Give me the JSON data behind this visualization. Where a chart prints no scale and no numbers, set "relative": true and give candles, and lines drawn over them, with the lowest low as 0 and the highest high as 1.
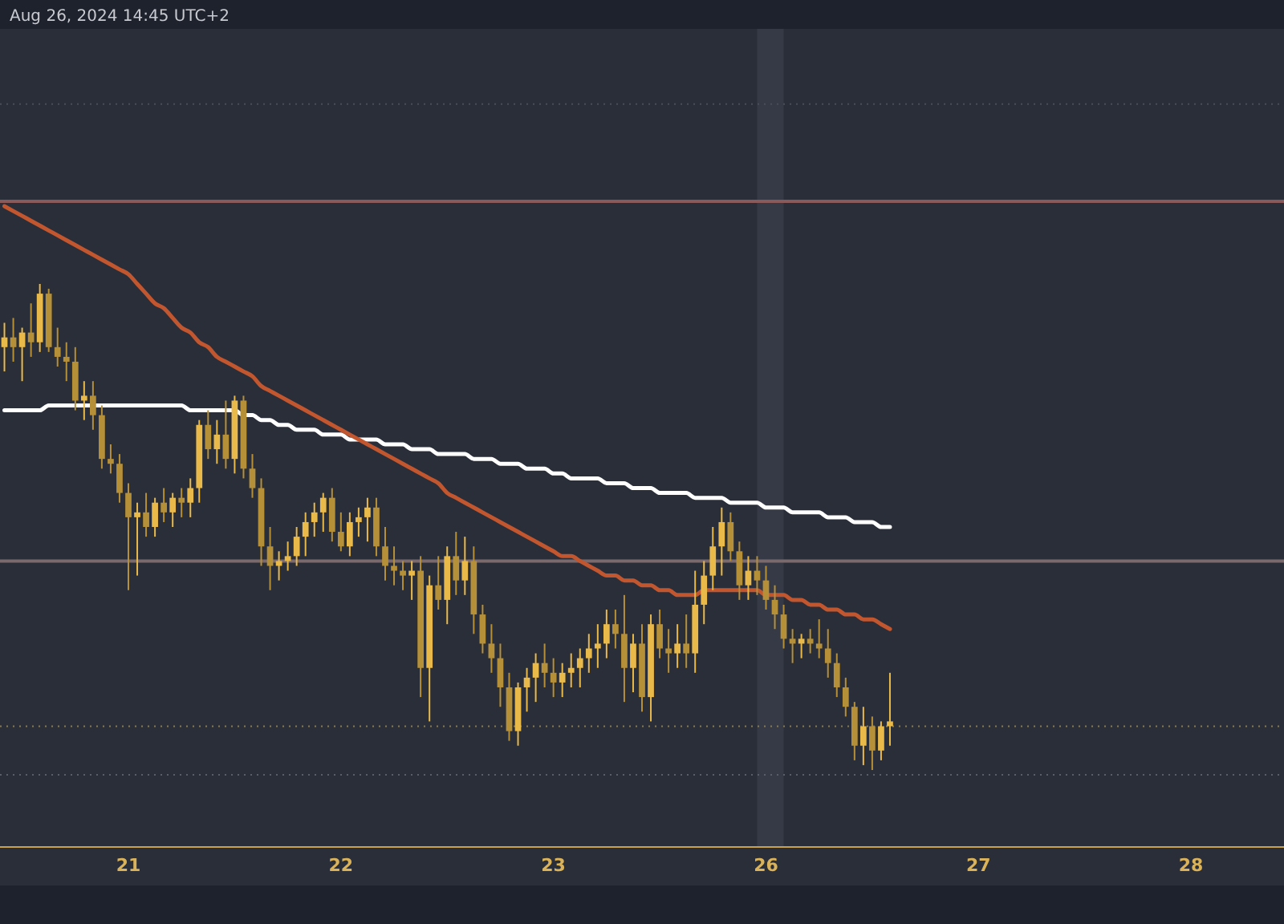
{
  "chart_data": {
    "type": "candlestick",
    "relative": true,
    "colors": [
      "#e9b949",
      "#b69039",
      "#e9b949",
      "#b69039",
      "#e9b949",
      "#b69039",
      "#b69039",
      "#b69039",
      "#b69039",
      "#e9b949",
      "#b69039",
      "#b69039",
      "#b69039",
      "#b69039",
      "#b69039",
      "#e9b949",
      "#b69039",
      "#e9b949",
      "#b69039",
      "#e9b949",
      "#b69039",
      "#e9b949",
      "#e9b949",
      "#b69039",
      "#e9b949",
      "#b69039",
      "#e9b949",
      "#b69039",
      "#b69039",
      "#b69039",
      "#b69039",
      "#e9b949",
      "#e9b949",
      "#e9b949",
      "#e9b949",
      "#e9b949",
      "#e9b949",
      "#b69039",
      "#b69039",
      "#e9b949",
      "#e9b949",
      "#e9b949",
      "#b69039",
      "#b69039",
      "#b69039",
      "#b69039",
      "#e9b949",
      "#b69039",
      "#e9b949",
      "#b69039",
      "#e9b949",
      "#b69039",
      "#e9b949",
      "#b69039",
      "#b69039",
      "#b69039",
      "#b69039",
      "#b69039",
      "#e9b949",
      "#e9b949",
      "#e9b949",
      "#b69039",
      "#b69039",
      "#e9b949",
      "#e9b949",
      "#e9b949",
      "#e9b949",
      "#e9b949",
      "#e9b949",
      "#b69039",
      "#b69039",
      "#e9b949",
      "#b69039",
      "#e9b949",
      "#b69039",
      "#b69039",
      "#e9b949",
      "#b69039",
      "#e9b949",
      "#e9b949",
      "#e9b949",
      "#e9b949",
      "#b69039",
      "#b69039",
      "#e9b949",
      "#b69039",
      "#b69039",
      "#b69039",
      "#b69039",
      "#b69039",
      "#e9b949",
      "#b69039",
      "#b69039",
      "#b69039",
      "#b69039",
      "#b69039",
      "#b69039",
      "#e9b949",
      "#b69039",
      "#e9b949",
      "#e9b949",
      null,
      null,
      null,
      null,
      null,
      null,
      null,
      null,
      null,
      null,
      null,
      null,
      null,
      null,
      null,
      null,
      null,
      null,
      null,
      null,
      null,
      null,
      null,
      null,
      null,
      null,
      null,
      null,
      null,
      null,
      null,
      null,
      null,
      null,
      null,
      null,
      null,
      null,
      null,
      null,
      null,
      null,
      null,
      null
    ],
    "annotations": [
      "Aug 26, 2024 14:45 UTC+2"
    ],
    "categories": [
      null,
      null,
      null,
      null,
      null,
      null,
      null,
      null,
      null,
      null,
      null,
      null,
      null,
      null,
      "21",
      null,
      null,
      null,
      null,
      null,
      null,
      null,
      null,
      null,
      null,
      null,
      null,
      null,
      null,
      null,
      null,
      null,
      null,
      null,
      null,
      null,
      null,
      null,
      "22",
      null,
      null,
      null,
      null,
      null,
      null,
      null,
      null,
      null,
      null,
      null,
      null,
      null,
      null,
      null,
      null,
      null,
      null,
      null,
      null,
      null,
      null,
      null,
      "23",
      null,
      null,
      null,
      null,
      null,
      null,
      null,
      null,
      null,
      null,
      null,
      null,
      null,
      null,
      null,
      null,
      null,
      null,
      null,
      null,
      null,
      null,
      null,
      "26",
      null,
      null,
      null,
      null,
      null,
      null,
      null,
      null,
      null,
      null,
      null,
      null,
      null,
      null,
      null,
      null,
      null,
      null,
      null,
      null,
      null,
      null,
      null,
      "27",
      null,
      null,
      null,
      null,
      null,
      null,
      null,
      null,
      null,
      null,
      null,
      null,
      null,
      null,
      null,
      null,
      null,
      null,
      null,
      null,
      null,
      null,
      null,
      "28",
      null,
      null,
      null,
      null,
      null,
      null,
      null,
      null,
      null,
      null
    ],
    "ohlc": [
      [
        0.87,
        0.92,
        0.82,
        0.89
      ],
      [
        0.89,
        0.93,
        0.84,
        0.87
      ],
      [
        0.87,
        0.91,
        0.8,
        0.9
      ],
      [
        0.9,
        0.96,
        0.85,
        0.88
      ],
      [
        0.88,
        1.0,
        0.86,
        0.98
      ],
      [
        0.98,
        0.99,
        0.86,
        0.87
      ],
      [
        0.87,
        0.91,
        0.83,
        0.85
      ],
      [
        0.85,
        0.88,
        0.8,
        0.84
      ],
      [
        0.84,
        0.87,
        0.74,
        0.76
      ],
      [
        0.76,
        0.8,
        0.72,
        0.77
      ],
      [
        0.77,
        0.8,
        0.7,
        0.73
      ],
      [
        0.73,
        0.75,
        0.62,
        0.64
      ],
      [
        0.64,
        0.67,
        0.61,
        0.63
      ],
      [
        0.63,
        0.65,
        0.55,
        0.57
      ],
      [
        0.57,
        0.59,
        0.37,
        0.52
      ],
      [
        0.52,
        0.55,
        0.4,
        0.53
      ],
      [
        0.53,
        0.57,
        0.48,
        0.5
      ],
      [
        0.5,
        0.56,
        0.48,
        0.55
      ],
      [
        0.55,
        0.58,
        0.51,
        0.53
      ],
      [
        0.53,
        0.57,
        0.5,
        0.56
      ],
      [
        0.56,
        0.58,
        0.52,
        0.55
      ],
      [
        0.55,
        0.6,
        0.52,
        0.58
      ],
      [
        0.58,
        0.72,
        0.55,
        0.71
      ],
      [
        0.71,
        0.74,
        0.64,
        0.66
      ],
      [
        0.66,
        0.72,
        0.63,
        0.69
      ],
      [
        0.69,
        0.76,
        0.62,
        0.64
      ],
      [
        0.64,
        0.77,
        0.61,
        0.76
      ],
      [
        0.76,
        0.77,
        0.6,
        0.62
      ],
      [
        0.62,
        0.65,
        0.56,
        0.58
      ],
      [
        0.58,
        0.6,
        0.42,
        0.46
      ],
      [
        0.46,
        0.5,
        0.37,
        0.42
      ],
      [
        0.42,
        0.45,
        0.39,
        0.43
      ],
      [
        0.43,
        0.47,
        0.41,
        0.44
      ],
      [
        0.44,
        0.5,
        0.42,
        0.48
      ],
      [
        0.48,
        0.53,
        0.44,
        0.51
      ],
      [
        0.51,
        0.55,
        0.48,
        0.53
      ],
      [
        0.53,
        0.57,
        0.49,
        0.56
      ],
      [
        0.56,
        0.58,
        0.47,
        0.49
      ],
      [
        0.49,
        0.53,
        0.45,
        0.46
      ],
      [
        0.46,
        0.53,
        0.44,
        0.51
      ],
      [
        0.51,
        0.54,
        0.48,
        0.52
      ],
      [
        0.52,
        0.56,
        0.47,
        0.54
      ],
      [
        0.54,
        0.56,
        0.44,
        0.46
      ],
      [
        0.46,
        0.5,
        0.39,
        0.42
      ],
      [
        0.42,
        0.46,
        0.38,
        0.41
      ],
      [
        0.41,
        0.43,
        0.37,
        0.4
      ],
      [
        0.4,
        0.43,
        0.35,
        0.41
      ],
      [
        0.41,
        0.44,
        0.15,
        0.21
      ],
      [
        0.21,
        0.4,
        0.1,
        0.38
      ],
      [
        0.38,
        0.44,
        0.33,
        0.35
      ],
      [
        0.35,
        0.46,
        0.3,
        0.44
      ],
      [
        0.44,
        0.49,
        0.36,
        0.39
      ],
      [
        0.39,
        0.48,
        0.36,
        0.43
      ],
      [
        0.43,
        0.46,
        0.28,
        0.32
      ],
      [
        0.32,
        0.34,
        0.24,
        0.26
      ],
      [
        0.26,
        0.3,
        0.2,
        0.23
      ],
      [
        0.23,
        0.26,
        0.13,
        0.17
      ],
      [
        0.17,
        0.2,
        0.06,
        0.08
      ],
      [
        0.08,
        0.18,
        0.05,
        0.17
      ],
      [
        0.17,
        0.21,
        0.12,
        0.19
      ],
      [
        0.19,
        0.24,
        0.14,
        0.22
      ],
      [
        0.22,
        0.26,
        0.17,
        0.2
      ],
      [
        0.2,
        0.23,
        0.15,
        0.18
      ],
      [
        0.18,
        0.22,
        0.15,
        0.2
      ],
      [
        0.2,
        0.24,
        0.17,
        0.21
      ],
      [
        0.21,
        0.25,
        0.17,
        0.23
      ],
      [
        0.23,
        0.28,
        0.2,
        0.25
      ],
      [
        0.25,
        0.3,
        0.21,
        0.26
      ],
      [
        0.26,
        0.33,
        0.23,
        0.3
      ],
      [
        0.3,
        0.33,
        0.25,
        0.28
      ],
      [
        0.28,
        0.36,
        0.14,
        0.21
      ],
      [
        0.21,
        0.28,
        0.16,
        0.26
      ],
      [
        0.26,
        0.3,
        0.12,
        0.15
      ],
      [
        0.15,
        0.32,
        0.1,
        0.3
      ],
      [
        0.3,
        0.33,
        0.23,
        0.25
      ],
      [
        0.25,
        0.29,
        0.2,
        0.24
      ],
      [
        0.24,
        0.3,
        0.21,
        0.26
      ],
      [
        0.26,
        0.32,
        0.21,
        0.24
      ],
      [
        0.24,
        0.41,
        0.2,
        0.34
      ],
      [
        0.34,
        0.43,
        0.3,
        0.4
      ],
      [
        0.4,
        0.5,
        0.37,
        0.46
      ],
      [
        0.46,
        0.54,
        0.4,
        0.51
      ],
      [
        0.51,
        0.53,
        0.43,
        0.45
      ],
      [
        0.45,
        0.47,
        0.35,
        0.38
      ],
      [
        0.38,
        0.44,
        0.35,
        0.41
      ],
      [
        0.41,
        0.44,
        0.36,
        0.39
      ],
      [
        0.39,
        0.42,
        0.33,
        0.35
      ],
      [
        0.35,
        0.38,
        0.29,
        0.32
      ],
      [
        0.32,
        0.34,
        0.25,
        0.27
      ],
      [
        0.27,
        0.29,
        0.22,
        0.26
      ],
      [
        0.26,
        0.28,
        0.23,
        0.27
      ],
      [
        0.27,
        0.29,
        0.24,
        0.26
      ],
      [
        0.26,
        0.31,
        0.23,
        0.25
      ],
      [
        0.25,
        0.29,
        0.19,
        0.22
      ],
      [
        0.22,
        0.24,
        0.15,
        0.17
      ],
      [
        0.17,
        0.19,
        0.11,
        0.13
      ],
      [
        0.13,
        0.14,
        0.02,
        0.05
      ],
      [
        0.05,
        0.13,
        0.01,
        0.09
      ],
      [
        0.09,
        0.11,
        0.0,
        0.04
      ],
      [
        0.04,
        0.1,
        0.02,
        0.09
      ],
      [
        0.09,
        0.2,
        0.05,
        0.1
      ],
      null,
      null,
      null,
      null,
      null,
      null,
      null,
      null,
      null,
      null,
      null,
      null,
      null,
      null,
      null,
      null,
      null,
      null,
      null,
      null,
      null,
      null,
      null,
      null,
      null,
      null,
      null,
      null,
      null,
      null,
      null,
      null,
      null,
      null,
      null,
      null,
      null,
      null,
      null,
      null,
      null,
      null,
      null,
      null
    ],
    "series": [
      {
        "type": "line",
        "color": "#ffffff",
        "values": [
          0.74,
          0.74,
          0.74,
          0.74,
          0.74,
          0.75,
          0.75,
          0.75,
          0.75,
          0.75,
          0.75,
          0.75,
          0.75,
          0.75,
          0.75,
          0.75,
          0.75,
          0.75,
          0.75,
          0.75,
          0.75,
          0.74,
          0.74,
          0.74,
          0.74,
          0.74,
          0.74,
          0.73,
          0.73,
          0.72,
          0.72,
          0.71,
          0.71,
          0.7,
          0.7,
          0.7,
          0.69,
          0.69,
          0.69,
          0.68,
          0.68,
          0.68,
          0.68,
          0.67,
          0.67,
          0.67,
          0.66,
          0.66,
          0.66,
          0.65,
          0.65,
          0.65,
          0.65,
          0.64,
          0.64,
          0.64,
          0.63,
          0.63,
          0.63,
          0.62,
          0.62,
          0.62,
          0.61,
          0.61,
          0.6,
          0.6,
          0.6,
          0.6,
          0.59,
          0.59,
          0.59,
          0.58,
          0.58,
          0.58,
          0.57,
          0.57,
          0.57,
          0.57,
          0.56,
          0.56,
          0.56,
          0.56,
          0.55,
          0.55,
          0.55,
          0.55,
          0.54,
          0.54,
          0.54,
          0.53,
          0.53,
          0.53,
          0.53,
          0.52,
          0.52,
          0.52,
          0.51,
          0.51,
          0.51,
          0.5,
          0.5,
          null,
          null,
          null,
          null,
          null,
          null,
          null,
          null,
          null,
          null,
          null,
          null,
          null,
          null,
          null,
          null,
          null,
          null,
          null,
          null,
          null,
          null,
          null,
          null,
          null,
          null,
          null,
          null,
          null,
          null,
          null,
          null,
          null,
          null,
          null,
          null,
          null,
          null,
          null,
          null,
          null,
          null,
          null,
          null
        ]
      },
      {
        "type": "line",
        "color": "#c2562f",
        "values": [
          1.16,
          1.15,
          1.14,
          1.13,
          1.12,
          1.11,
          1.1,
          1.09,
          1.08,
          1.07,
          1.06,
          1.05,
          1.04,
          1.03,
          1.02,
          1.0,
          0.98,
          0.96,
          0.95,
          0.93,
          0.91,
          0.9,
          0.88,
          0.87,
          0.85,
          0.84,
          0.83,
          0.82,
          0.81,
          0.79,
          0.78,
          0.77,
          0.76,
          0.75,
          0.74,
          0.73,
          0.72,
          0.71,
          0.7,
          0.69,
          0.68,
          0.67,
          0.66,
          0.65,
          0.64,
          0.63,
          0.62,
          0.61,
          0.6,
          0.59,
          0.57,
          0.56,
          0.55,
          0.54,
          0.53,
          0.52,
          0.51,
          0.5,
          0.49,
          0.48,
          0.47,
          0.46,
          0.45,
          0.44,
          0.44,
          0.43,
          0.42,
          0.41,
          0.4,
          0.4,
          0.39,
          0.39,
          0.38,
          0.38,
          0.37,
          0.37,
          0.36,
          0.36,
          0.36,
          0.37,
          0.37,
          0.37,
          0.37,
          0.37,
          0.37,
          0.37,
          0.36,
          0.36,
          0.36,
          0.35,
          0.35,
          0.34,
          0.34,
          0.33,
          0.33,
          0.32,
          0.32,
          0.31,
          0.31,
          0.3,
          0.29,
          null,
          null,
          null,
          null,
          null,
          null,
          null,
          null,
          null,
          null,
          null,
          null,
          null,
          null,
          null,
          null,
          null,
          null,
          null,
          null,
          null,
          null,
          null,
          null,
          null,
          null,
          null,
          null,
          null,
          null,
          null,
          null,
          null,
          null,
          null,
          null,
          null,
          null,
          null,
          null,
          null,
          null,
          null,
          null
        ]
      }
    ],
    "tick_labels": "x",
    "ref_lines": [
      {
        "axis": "y",
        "value": 1.17,
        "color": "#8a5a5a",
        "line_style": "solid"
      },
      {
        "axis": "y",
        "value": 1.37,
        "color": "#4a4e5a",
        "line_style": "dotted"
      },
      {
        "axis": "y",
        "value": 0.43,
        "color": "#7a6a6e",
        "line_style": "solid"
      },
      {
        "axis": "y",
        "value": 0.09,
        "color": "#8a7a4a",
        "line_style": "dotted"
      },
      {
        "axis": "y",
        "value": -0.01,
        "color": "#5a5e6a",
        "line_style": "dotted"
      }
    ]
  }
}
